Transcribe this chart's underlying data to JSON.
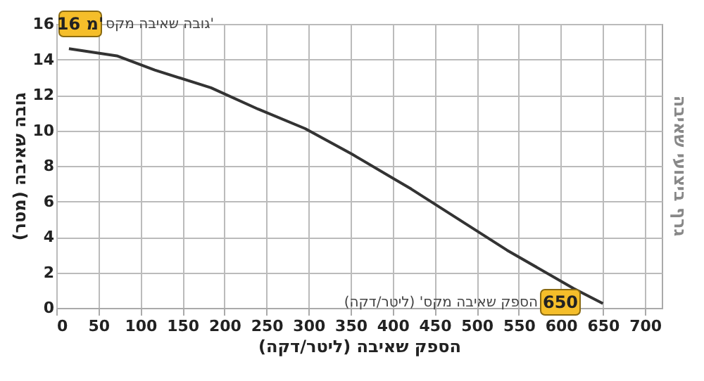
{
  "chart_data": {
    "type": "line",
    "title": "גרף ביצועי שאיבה",
    "xlabel": "הספק שאיבה (ליטר/דקה)",
    "ylabel": "גובה שאיבה (מטר)",
    "x": [
      15,
      72,
      117,
      184,
      240,
      296,
      352,
      422,
      536,
      615,
      650
    ],
    "series": [
      {
        "color": "#333333",
        "values": [
          14.6,
          14.2,
          13.4,
          12.4,
          11.2,
          10.1,
          8.65,
          6.7,
          3.25,
          1.1,
          0.25
        ]
      }
    ],
    "xlim": [
      0,
      720
    ],
    "xticks": [
      0,
      50,
      100,
      150,
      200,
      250,
      300,
      350,
      400,
      450,
      500,
      550,
      600,
      650,
      700
    ],
    "ylim": [
      0,
      16
    ],
    "yticks": [
      0,
      2,
      4,
      6,
      8,
      10,
      12,
      14,
      16
    ],
    "grid": true,
    "marker": "none",
    "line_style": "solid",
    "annotations": [
      "16 מ'",
      "גובה שאיבה מקס'",
      "650",
      "הספק שאיבה מקס' (ליטר/דקה)"
    ]
  }
}
